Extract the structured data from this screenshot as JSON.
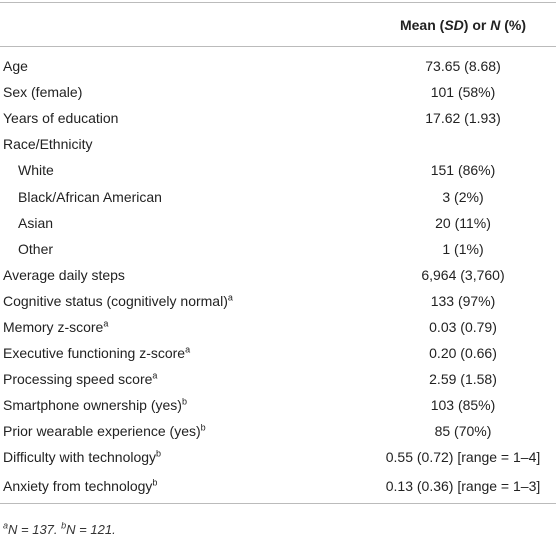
{
  "header": {
    "value_column": [
      "Mean (",
      "SD",
      ") or ",
      "N",
      " (%)"
    ]
  },
  "rows": [
    {
      "label": "Age",
      "value": "73.65 (8.68)"
    },
    {
      "label": "Sex (female)",
      "value": "101 (58%)"
    },
    {
      "label": "Years of education",
      "value": "17.62 (1.93)"
    },
    {
      "label": "Race/Ethnicity",
      "subrows": [
        {
          "label": "White",
          "value": "151 (86%)"
        },
        {
          "label": "Black/African American",
          "value": "3 (2%)"
        },
        {
          "label": "Asian",
          "value": "20 (11%)"
        },
        {
          "label": "Other",
          "value": "1 (1%)"
        }
      ]
    },
    {
      "label": "Average daily steps",
      "value": "6,964 (3,760)"
    },
    {
      "label": "Cognitive status (cognitively normal)",
      "note": "a",
      "value": "133 (97%)"
    },
    {
      "label": "Memory z-score",
      "note": "a",
      "value": "0.03 (0.79)"
    },
    {
      "label": "Executive functioning z-score",
      "note": "a",
      "value": "0.20 (0.66)"
    },
    {
      "label": "Processing speed score",
      "note": "a",
      "value": "2.59 (1.58)"
    },
    {
      "label": "Smartphone ownership (yes)",
      "note": "b",
      "value": "103 (85%)"
    },
    {
      "label": "Prior wearable experience (yes)",
      "note": "b",
      "value": "85 (70%)"
    },
    {
      "label": "Difficulty with technology",
      "note": "b",
      "value": "0.55 (0.72) [range = 1–4]"
    },
    {
      "label": "Anxiety from technology",
      "note": "b",
      "value": "0.13 (0.36) [range = 1–3]"
    }
  ],
  "footnotes": [
    {
      "mark": "a",
      "var": "N",
      "text": " = 137."
    },
    {
      "mark": "b",
      "var": "N",
      "text": " = 121."
    }
  ]
}
